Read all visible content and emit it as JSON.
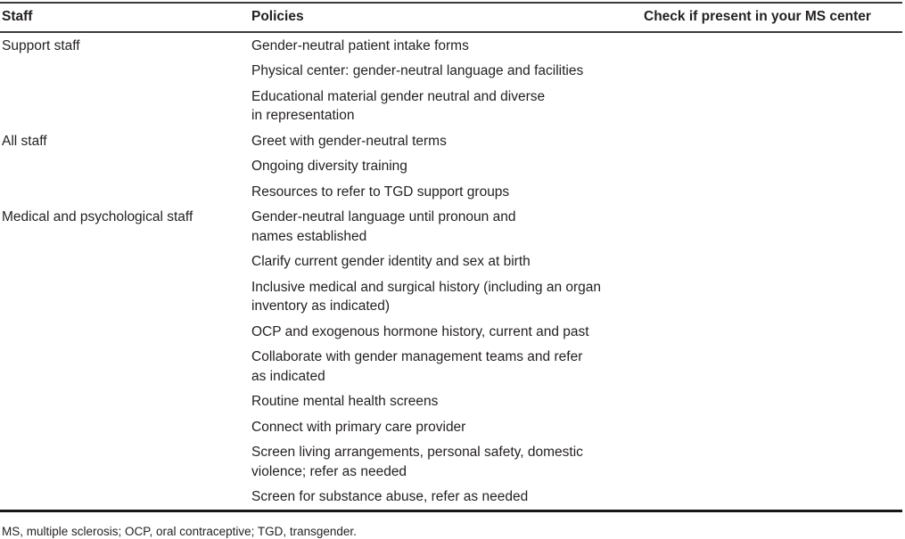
{
  "table": {
    "columns": [
      {
        "label": "Staff"
      },
      {
        "label": "Policies"
      },
      {
        "label": "Check if present in your MS center"
      }
    ],
    "groups": [
      {
        "staff": "Support staff",
        "policies": [
          [
            "Gender-neutral patient intake forms"
          ],
          [
            "Physical center: gender-neutral language and facilities"
          ],
          [
            "Educational material gender neutral and diverse",
            "in representation"
          ]
        ]
      },
      {
        "staff": "All staff",
        "policies": [
          [
            "Greet with gender-neutral terms"
          ],
          [
            "Ongoing diversity training"
          ],
          [
            "Resources to refer to TGD support groups"
          ]
        ]
      },
      {
        "staff": "Medical and psychological staff",
        "policies": [
          [
            "Gender-neutral language until pronoun and",
            "names established"
          ],
          [
            "Clarify current gender identity and sex at birth"
          ],
          [
            "Inclusive medical and surgical history (including an organ",
            "inventory as indicated)"
          ],
          [
            "OCP and exogenous hormone history, current and past"
          ],
          [
            "Collaborate with gender management teams and refer",
            "as indicated"
          ],
          [
            "Routine mental health screens"
          ],
          [
            "Connect with primary care provider"
          ],
          [
            "Screen living arrangements, personal safety, domestic",
            "violence; refer as needed"
          ],
          [
            "Screen for substance abuse, refer as needed"
          ]
        ]
      }
    ]
  },
  "footnote": "MS, multiple sclerosis; OCP, oral contraceptive; TGD, transgender.",
  "colors": {
    "text": "#231f20",
    "rule_thin": "#3a3a3a",
    "rule_thick": "#161616",
    "background": "#ffffff"
  }
}
